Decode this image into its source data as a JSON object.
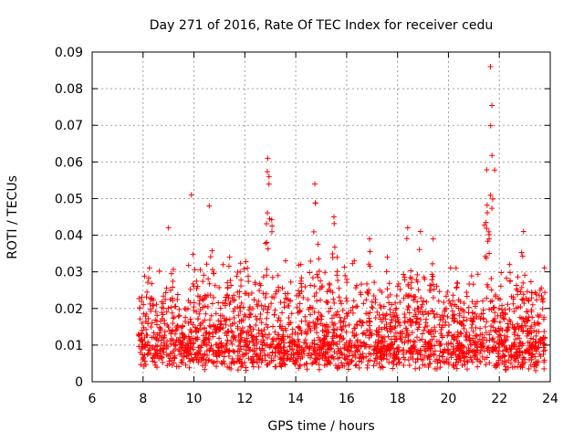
{
  "chart_data": {
    "type": "scatter",
    "title": "Day 271 of 2016, Rate Of TEC Index for receiver cedu",
    "xlabel": "GPS time / hours",
    "ylabel": "ROTI / TECUs",
    "xlim": [
      6,
      24
    ],
    "ylim": [
      0,
      0.09
    ],
    "x_ticks": [
      6,
      8,
      10,
      12,
      14,
      16,
      18,
      20,
      22,
      24
    ],
    "x_tick_labels": [
      "6",
      "8",
      "10",
      "12",
      "14",
      "16",
      "18",
      "20",
      "22",
      "24"
    ],
    "y_ticks": [
      0,
      0.01,
      0.02,
      0.03,
      0.04,
      0.05,
      0.06,
      0.07,
      0.08,
      0.09
    ],
    "y_tick_labels": [
      "0",
      "0.01",
      "0.02",
      "0.03",
      "0.04",
      "0.05",
      "0.06",
      "0.07",
      "0.08",
      "0.09"
    ],
    "grid": true,
    "marker": "plus",
    "marker_color": "#ff0000",
    "data_extent_x": [
      7.8,
      23.8
    ],
    "baseline_band_y": [
      0.003,
      0.02
    ],
    "spikes": [
      {
        "x": 8.25,
        "y": 0.031
      },
      {
        "x": 9.0,
        "y": 0.042
      },
      {
        "x": 9.9,
        "y": 0.051
      },
      {
        "x": 10.6,
        "y": 0.048
      },
      {
        "x": 11.4,
        "y": 0.034
      },
      {
        "x": 12.1,
        "y": 0.031
      },
      {
        "x": 12.9,
        "y": 0.061
      },
      {
        "x": 12.95,
        "y": 0.056
      },
      {
        "x": 13.6,
        "y": 0.033
      },
      {
        "x": 14.2,
        "y": 0.032
      },
      {
        "x": 14.75,
        "y": 0.054
      },
      {
        "x": 15.5,
        "y": 0.045
      },
      {
        "x": 16.3,
        "y": 0.033
      },
      {
        "x": 16.9,
        "y": 0.039
      },
      {
        "x": 17.6,
        "y": 0.034
      },
      {
        "x": 18.4,
        "y": 0.042
      },
      {
        "x": 18.9,
        "y": 0.041
      },
      {
        "x": 19.4,
        "y": 0.039
      },
      {
        "x": 20.3,
        "y": 0.031
      },
      {
        "x": 21.6,
        "y": 0.039
      },
      {
        "x": 21.65,
        "y": 0.086
      },
      {
        "x": 22.4,
        "y": 0.032
      },
      {
        "x": 22.95,
        "y": 0.041
      },
      {
        "x": 23.6,
        "y": 0.025
      }
    ]
  }
}
